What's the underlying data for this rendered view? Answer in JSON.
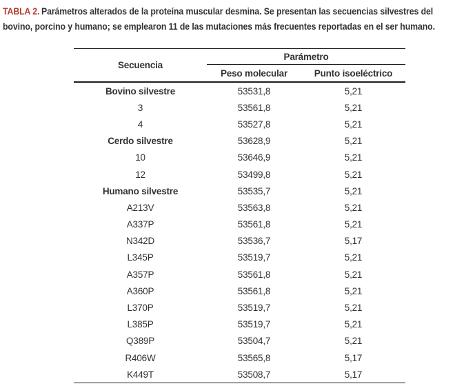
{
  "caption": {
    "label": "TABLA 2.",
    "line1": "Parámetros alterados de la proteína muscular desmina. Se presentan las secuencias silvestres del",
    "line2": "bovino, porcino y humano; se emplearon 11 de las mutaciones más frecuentes reportadas en el ser humano."
  },
  "colors": {
    "accent_red": "#b63b30",
    "text": "#333336",
    "rule": "#1c1c1c"
  },
  "table": {
    "header": {
      "sequence": "Secuencia",
      "group": "Parámetro",
      "molecular_weight": "Peso molecular",
      "isoelectric_point": "Punto isoeléctrico"
    },
    "rows": [
      {
        "sequence": "Bovino silvestre",
        "bold": true,
        "molecular_weight": "53531,8",
        "isoelectric_point": "5,21"
      },
      {
        "sequence": "3",
        "bold": false,
        "molecular_weight": "53561,8",
        "isoelectric_point": "5,21"
      },
      {
        "sequence": "4",
        "bold": false,
        "molecular_weight": "53527,8",
        "isoelectric_point": "5,21"
      },
      {
        "sequence": "Cerdo silvestre",
        "bold": true,
        "molecular_weight": "53628,9",
        "isoelectric_point": "5,21"
      },
      {
        "sequence": "10",
        "bold": false,
        "molecular_weight": "53646,9",
        "isoelectric_point": "5,21"
      },
      {
        "sequence": "12",
        "bold": false,
        "molecular_weight": "53499,8",
        "isoelectric_point": "5,21"
      },
      {
        "sequence": "Humano silvestre",
        "bold": true,
        "molecular_weight": "53535,7",
        "isoelectric_point": "5,21"
      },
      {
        "sequence": "A213V",
        "bold": false,
        "molecular_weight": "53563,8",
        "isoelectric_point": "5,21"
      },
      {
        "sequence": "A337P",
        "bold": false,
        "molecular_weight": "53561,8",
        "isoelectric_point": "5,21"
      },
      {
        "sequence": "N342D",
        "bold": false,
        "molecular_weight": "53536,7",
        "isoelectric_point": "5,17"
      },
      {
        "sequence": "L345P",
        "bold": false,
        "molecular_weight": "53519,7",
        "isoelectric_point": "5,21"
      },
      {
        "sequence": "A357P",
        "bold": false,
        "molecular_weight": "53561,8",
        "isoelectric_point": "5,21"
      },
      {
        "sequence": "A360P",
        "bold": false,
        "molecular_weight": "53561,8",
        "isoelectric_point": "5,21"
      },
      {
        "sequence": "L370P",
        "bold": false,
        "molecular_weight": "53519,7",
        "isoelectric_point": "5,21"
      },
      {
        "sequence": "L385P",
        "bold": false,
        "molecular_weight": "53519,7",
        "isoelectric_point": "5,21"
      },
      {
        "sequence": "Q389P",
        "bold": false,
        "molecular_weight": "53504,7",
        "isoelectric_point": "5,21"
      },
      {
        "sequence": "R406W",
        "bold": false,
        "molecular_weight": "53565,8",
        "isoelectric_point": "5,17"
      },
      {
        "sequence": "K449T",
        "bold": false,
        "molecular_weight": "53508,7",
        "isoelectric_point": "5,17"
      }
    ]
  }
}
